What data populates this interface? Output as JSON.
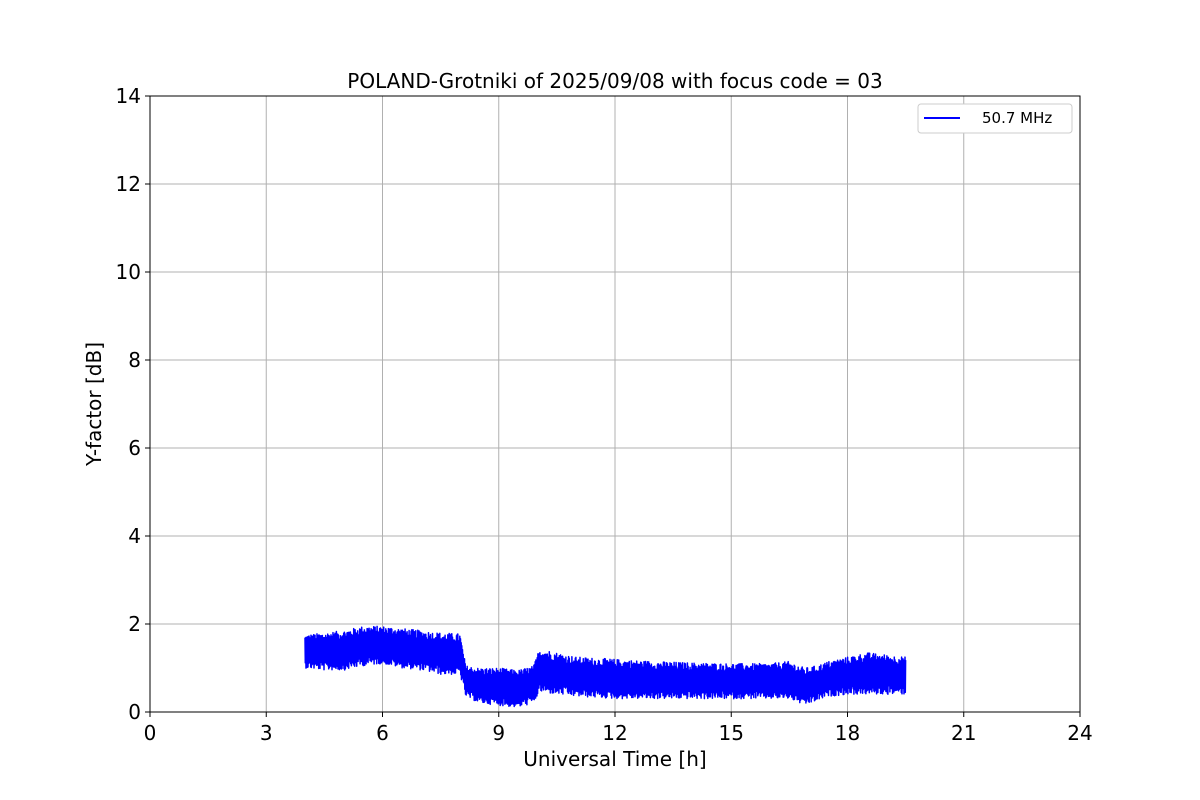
{
  "chart_data": {
    "type": "line",
    "title": "POLAND-Grotniki of 2025/09/08 with focus code = 03",
    "xlabel": "Universal Time [h]",
    "ylabel": "Y-factor [dB]",
    "xlim": [
      0,
      24
    ],
    "ylim": [
      0,
      14
    ],
    "xticks": [
      0,
      3,
      6,
      9,
      12,
      15,
      18,
      21,
      24
    ],
    "yticks": [
      0,
      2,
      4,
      6,
      8,
      10,
      12,
      14
    ],
    "grid": true,
    "legend_position": "upper-right",
    "series": [
      {
        "name": "50.7 MHz",
        "color": "#0000ff",
        "style": "noisy-band",
        "x": [
          4.0,
          4.5,
          5.0,
          5.5,
          6.0,
          6.5,
          7.0,
          7.5,
          8.0,
          8.15,
          8.5,
          9.0,
          9.5,
          9.9,
          10.05,
          10.5,
          11.0,
          12.0,
          13.0,
          14.0,
          15.0,
          16.0,
          16.5,
          16.9,
          17.2,
          17.5,
          18.0,
          18.5,
          19.0,
          19.5
        ],
        "upper": [
          1.75,
          1.8,
          1.85,
          1.95,
          1.95,
          1.9,
          1.85,
          1.8,
          1.78,
          1.05,
          1.0,
          1.0,
          0.95,
          1.05,
          1.45,
          1.35,
          1.25,
          1.2,
          1.15,
          1.12,
          1.1,
          1.1,
          1.15,
          1.0,
          1.05,
          1.15,
          1.25,
          1.35,
          1.3,
          1.25
        ],
        "lower": [
          1.0,
          0.95,
          0.95,
          1.05,
          1.1,
          1.0,
          0.95,
          0.85,
          0.85,
          0.35,
          0.2,
          0.15,
          0.1,
          0.2,
          0.45,
          0.4,
          0.35,
          0.3,
          0.3,
          0.3,
          0.3,
          0.3,
          0.3,
          0.15,
          0.25,
          0.35,
          0.4,
          0.4,
          0.4,
          0.4
        ]
      }
    ]
  }
}
